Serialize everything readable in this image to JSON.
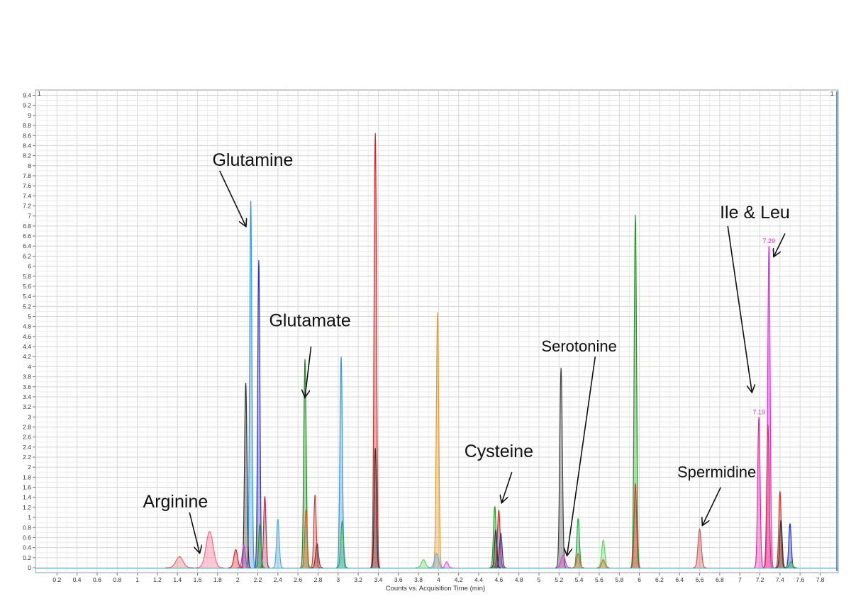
{
  "chart_data": {
    "type": "line",
    "xlabel": "Counts vs. Acquisition Time (min)",
    "ylabel": "",
    "xlim": [
      0,
      8.0
    ],
    "ylim": [
      0,
      9.5
    ],
    "xticks": [
      "0.2",
      "0.4",
      "0.6",
      "0.8",
      "1",
      "1.2",
      "1.4",
      "1.6",
      "1.8",
      "2",
      "2.2",
      "2.4",
      "2.6",
      "2.8",
      "3",
      "3.2",
      "3.4",
      "3.6",
      "3.8",
      "4",
      "4.2",
      "4.4",
      "4.6",
      "4.8",
      "5",
      "5.2",
      "5.4",
      "5.6",
      "5.8",
      "6",
      "6.2",
      "6.4",
      "6.6",
      "6.8",
      "7",
      "7.2",
      "7.4",
      "7.6",
      "7.8"
    ],
    "yticks": [
      "0",
      "0.2",
      "0.4",
      "0.6",
      "0.8",
      "1",
      "1.2",
      "1.4",
      "1.6",
      "1.8",
      "2",
      "2.2",
      "2.4",
      "2.6",
      "2.8",
      "3",
      "3.2",
      "3.4",
      "3.6",
      "3.8",
      "4",
      "4.2",
      "4.4",
      "4.6",
      "4.8",
      "5",
      "5.2",
      "5.4",
      "5.6",
      "5.8",
      "6",
      "6.2",
      "6.4",
      "6.6",
      "6.8",
      "7",
      "7.2",
      "7.4",
      "7.6",
      "7.8",
      "8",
      "8.2",
      "8.4",
      "8.6",
      "8.8",
      "9",
      "9.2",
      "9.4"
    ],
    "grid": true,
    "legend": "none",
    "panel_marks": [
      "1",
      "1"
    ],
    "peak_labels": [
      {
        "text": "7.29",
        "x": 7.29,
        "y": 6.4
      },
      {
        "text": "7.19",
        "x": 7.19,
        "y": 3.0
      }
    ],
    "peaks": [
      {
        "rt": 1.42,
        "h": 0.22,
        "w": 0.035,
        "color": "#e07070"
      },
      {
        "rt": 1.72,
        "h": 0.72,
        "w": 0.035,
        "color": "#ff6688"
      },
      {
        "rt": 1.98,
        "h": 0.36,
        "w": 0.018,
        "color": "#dd2222"
      },
      {
        "rt": 2.08,
        "h": 3.68,
        "w": 0.012,
        "color": "#333333"
      },
      {
        "rt": 2.06,
        "h": 0.45,
        "w": 0.015,
        "color": "#cc44cc"
      },
      {
        "rt": 2.13,
        "h": 7.3,
        "w": 0.011,
        "color": "#3399dd"
      },
      {
        "rt": 2.21,
        "h": 6.12,
        "w": 0.011,
        "color": "#3333bb"
      },
      {
        "rt": 2.22,
        "h": 0.85,
        "w": 0.012,
        "color": "#229922"
      },
      {
        "rt": 2.27,
        "h": 1.42,
        "w": 0.012,
        "color": "#aa3355"
      },
      {
        "rt": 2.4,
        "h": 0.97,
        "w": 0.013,
        "color": "#55aadd"
      },
      {
        "rt": 2.67,
        "h": 4.15,
        "w": 0.012,
        "color": "#228822"
      },
      {
        "rt": 2.68,
        "h": 1.15,
        "w": 0.012,
        "color": "#cc6622"
      },
      {
        "rt": 2.77,
        "h": 1.45,
        "w": 0.012,
        "color": "#cc4444"
      },
      {
        "rt": 2.79,
        "h": 0.48,
        "w": 0.014,
        "color": "#883333"
      },
      {
        "rt": 3.03,
        "h": 4.2,
        "w": 0.012,
        "color": "#3399dd"
      },
      {
        "rt": 3.04,
        "h": 0.92,
        "w": 0.014,
        "color": "#33aa55"
      },
      {
        "rt": 3.37,
        "h": 8.65,
        "w": 0.012,
        "color": "#dd2222"
      },
      {
        "rt": 3.37,
        "h": 2.38,
        "w": 0.011,
        "color": "#333333"
      },
      {
        "rt": 3.99,
        "h": 5.08,
        "w": 0.012,
        "color": "#ee9922"
      },
      {
        "rt": 3.98,
        "h": 0.28,
        "w": 0.02,
        "color": "#66aadd"
      },
      {
        "rt": 3.85,
        "h": 0.16,
        "w": 0.02,
        "color": "#66cc66"
      },
      {
        "rt": 4.08,
        "h": 0.12,
        "w": 0.015,
        "color": "#ee55ee"
      },
      {
        "rt": 4.56,
        "h": 1.22,
        "w": 0.013,
        "color": "#229922"
      },
      {
        "rt": 4.6,
        "h": 1.15,
        "w": 0.013,
        "color": "#cc3333"
      },
      {
        "rt": 4.62,
        "h": 0.68,
        "w": 0.013,
        "color": "#3333aa"
      },
      {
        "rt": 4.57,
        "h": 0.75,
        "w": 0.012,
        "color": "#333333"
      },
      {
        "rt": 5.22,
        "h": 3.98,
        "w": 0.013,
        "color": "#444444"
      },
      {
        "rt": 5.24,
        "h": 0.25,
        "w": 0.02,
        "color": "#cc44cc"
      },
      {
        "rt": 5.39,
        "h": 0.98,
        "w": 0.013,
        "color": "#22aa44"
      },
      {
        "rt": 5.39,
        "h": 0.28,
        "w": 0.015,
        "color": "#cc6633"
      },
      {
        "rt": 5.64,
        "h": 0.55,
        "w": 0.015,
        "color": "#55dd55"
      },
      {
        "rt": 5.64,
        "h": 0.16,
        "w": 0.015,
        "color": "#cc6633"
      },
      {
        "rt": 5.96,
        "h": 7.02,
        "w": 0.012,
        "color": "#229922"
      },
      {
        "rt": 5.96,
        "h": 1.68,
        "w": 0.012,
        "color": "#dd3333"
      },
      {
        "rt": 6.6,
        "h": 0.77,
        "w": 0.016,
        "color": "#cc5555"
      },
      {
        "rt": 7.19,
        "h": 3.0,
        "w": 0.012,
        "color": "#ee22aa"
      },
      {
        "rt": 7.29,
        "h": 6.4,
        "w": 0.012,
        "color": "#ee22ee"
      },
      {
        "rt": 7.28,
        "h": 2.85,
        "w": 0.012,
        "color": "#dd3355"
      },
      {
        "rt": 7.4,
        "h": 1.52,
        "w": 0.012,
        "color": "#dd3322"
      },
      {
        "rt": 7.41,
        "h": 0.95,
        "w": 0.012,
        "color": "#333333"
      },
      {
        "rt": 7.5,
        "h": 0.88,
        "w": 0.012,
        "color": "#2233cc"
      },
      {
        "rt": 7.51,
        "h": 0.12,
        "w": 0.015,
        "color": "#33aa33"
      }
    ],
    "annotations": [
      {
        "text": "Glutamine",
        "tx": 2.15,
        "ty": 8.0,
        "ax1": 1.82,
        "ay1": 7.9,
        "ax2": 2.08,
        "ay2": 6.8
      },
      {
        "text": "Glutamate",
        "tx": 2.72,
        "ty": 4.8,
        "ax1": 2.73,
        "ay1": 4.4,
        "ax2": 2.67,
        "ay2": 3.4
      },
      {
        "text": "Arginine",
        "tx": 1.38,
        "ty": 1.2,
        "ax1": 1.52,
        "ay1": 1.1,
        "ax2": 1.62,
        "ay2": 0.3
      },
      {
        "text": "Cysteine",
        "tx": 4.6,
        "ty": 2.2,
        "ax1": 4.73,
        "ay1": 1.9,
        "ax2": 4.63,
        "ay2": 1.3
      },
      {
        "text": "Serotonine",
        "tx": 5.4,
        "ty": 4.3,
        "ax1": 5.56,
        "ay1": 4.2,
        "ax2": 5.28,
        "ay2": 0.25,
        "small": true
      },
      {
        "text": "Spermidine",
        "tx": 6.77,
        "ty": 1.8,
        "ax1": 6.81,
        "ay1": 1.6,
        "ax2": 6.63,
        "ay2": 0.85,
        "small": true
      },
      {
        "text": "Ile & Leu",
        "tx": 7.15,
        "ty": 6.95,
        "ax1": 6.88,
        "ay1": 6.8,
        "ax2": 7.12,
        "ay2": 3.5
      },
      {
        "text": "",
        "tx": 0,
        "ty": 0,
        "ax1": 7.45,
        "ay1": 6.65,
        "ax2": 7.34,
        "ay2": 6.2
      }
    ]
  }
}
